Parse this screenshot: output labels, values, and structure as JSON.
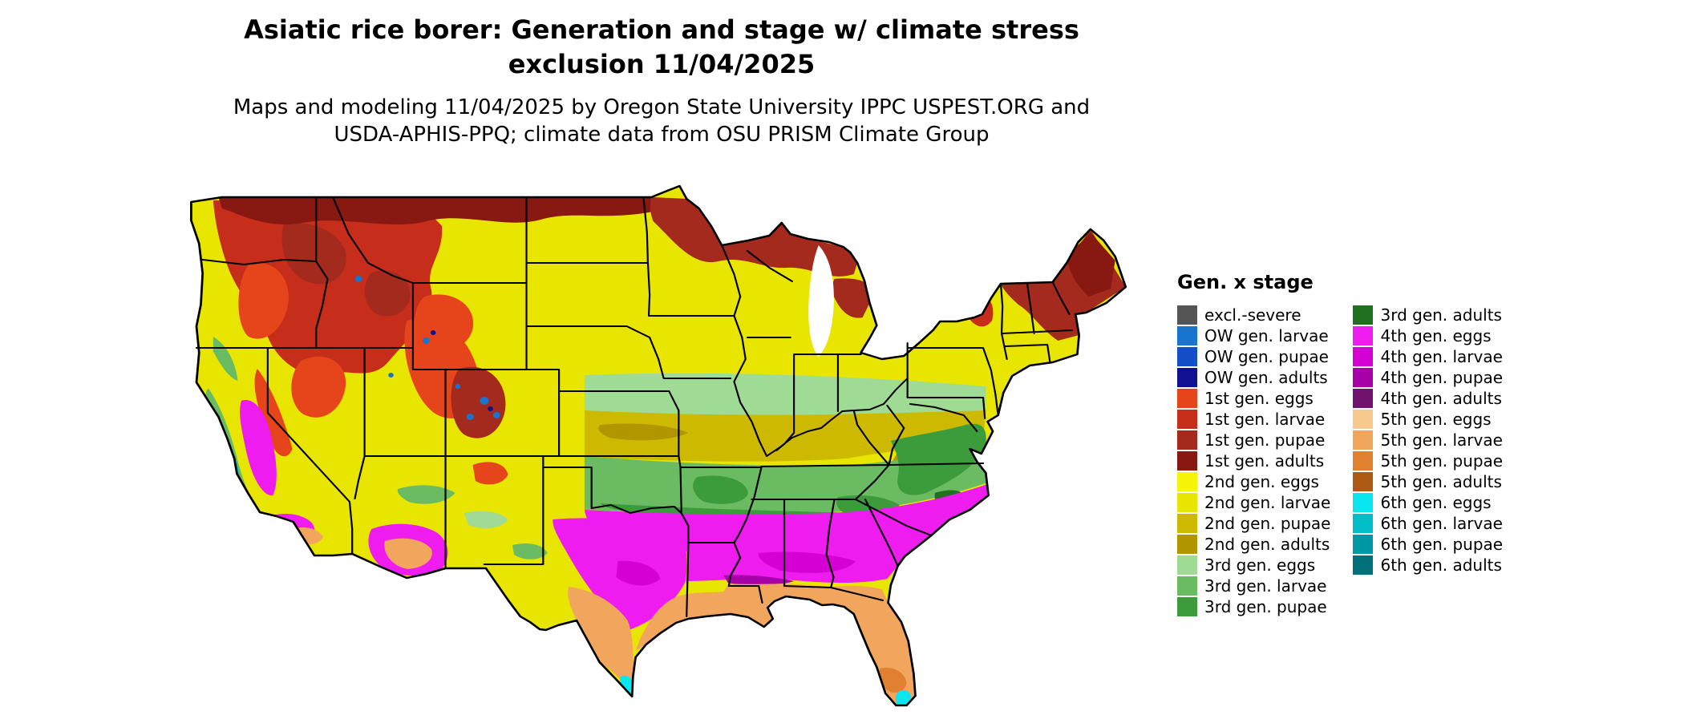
{
  "title": {
    "line1": "Asiatic rice borer: Generation and stage w/ climate stress",
    "line2": "exclusion 11/04/2025"
  },
  "subtitle": {
    "line1": "Maps and modeling 11/04/2025 by Oregon State University IPPC USPEST.ORG and",
    "line2": "USDA-APHIS-PPQ; climate data from OSU PRISM Climate Group"
  },
  "map": {
    "description": "Continental United States choropleth of Asiatic rice borer generation and life stage"
  },
  "legend": {
    "title": "Gen. x stage",
    "col1": [
      {
        "label": "excl.-severe",
        "key": "excl_severe"
      },
      {
        "label": "OW gen. larvae",
        "key": "ow_larvae"
      },
      {
        "label": "OW gen. pupae",
        "key": "ow_pupae"
      },
      {
        "label": "OW gen. adults",
        "key": "ow_adults"
      },
      {
        "label": "1st gen. eggs",
        "key": "g1_eggs"
      },
      {
        "label": "1st gen. larvae",
        "key": "g1_larvae"
      },
      {
        "label": "1st gen. pupae",
        "key": "g1_pupae"
      },
      {
        "label": "1st gen. adults",
        "key": "g1_adults"
      },
      {
        "label": "2nd gen. eggs",
        "key": "g2_eggs"
      },
      {
        "label": "2nd gen. larvae",
        "key": "g2_larvae"
      },
      {
        "label": "2nd gen. pupae",
        "key": "g2_pupae"
      },
      {
        "label": "2nd gen. adults",
        "key": "g2_adults"
      },
      {
        "label": "3rd gen. eggs",
        "key": "g3_eggs"
      },
      {
        "label": "3rd gen. larvae",
        "key": "g3_larvae"
      },
      {
        "label": "3rd gen. pupae",
        "key": "g3_pupae"
      }
    ],
    "col2": [
      {
        "label": "3rd gen. adults",
        "key": "g3_adults"
      },
      {
        "label": "4th gen. eggs",
        "key": "g4_eggs"
      },
      {
        "label": "4th gen. larvae",
        "key": "g4_larvae"
      },
      {
        "label": "4th gen. pupae",
        "key": "g4_pupae"
      },
      {
        "label": "4th gen. adults",
        "key": "g4_adults"
      },
      {
        "label": "5th gen. eggs",
        "key": "g5_eggs"
      },
      {
        "label": "5th gen. larvae",
        "key": "g5_larvae"
      },
      {
        "label": "5th gen. pupae",
        "key": "g5_pupae"
      },
      {
        "label": "5th gen. adults",
        "key": "g5_adults"
      },
      {
        "label": "6th gen. eggs",
        "key": "g6_eggs"
      },
      {
        "label": "6th gen. larvae",
        "key": "g6_larvae"
      },
      {
        "label": "6th gen. pupae",
        "key": "g6_pupae"
      },
      {
        "label": "6th gen. adults",
        "key": "g6_adults"
      }
    ]
  },
  "palette": {
    "excl_severe": "#555555",
    "ow_larvae": "#1874CD",
    "ow_pupae": "#1350C8",
    "ow_adults": "#101090",
    "g1_eggs": "#E6451C",
    "g1_larvae": "#C62D1B",
    "g1_pupae": "#A52A1E",
    "g1_adults": "#871812",
    "g2_eggs": "#F5F50A",
    "g2_larvae": "#E8E600",
    "g2_pupae": "#CDBA00",
    "g2_adults": "#B19600",
    "g3_eggs": "#9FDB94",
    "g3_larvae": "#6ABB62",
    "g3_pupae": "#3C9C3C",
    "g3_adults": "#1F701F",
    "g4_eggs": "#EE1CEE",
    "g4_larvae": "#D400D4",
    "g4_pupae": "#A800A8",
    "g4_adults": "#70116E",
    "g5_eggs": "#F8C98F",
    "g5_larvae": "#F2A55C",
    "g5_pupae": "#E08030",
    "g5_adults": "#AE5A14",
    "g6_eggs": "#0AE6F0",
    "g6_larvae": "#00BEC8",
    "g6_pupae": "#0098A3",
    "g6_adults": "#00717A",
    "border": "#000000",
    "water": "#ffffff"
  }
}
